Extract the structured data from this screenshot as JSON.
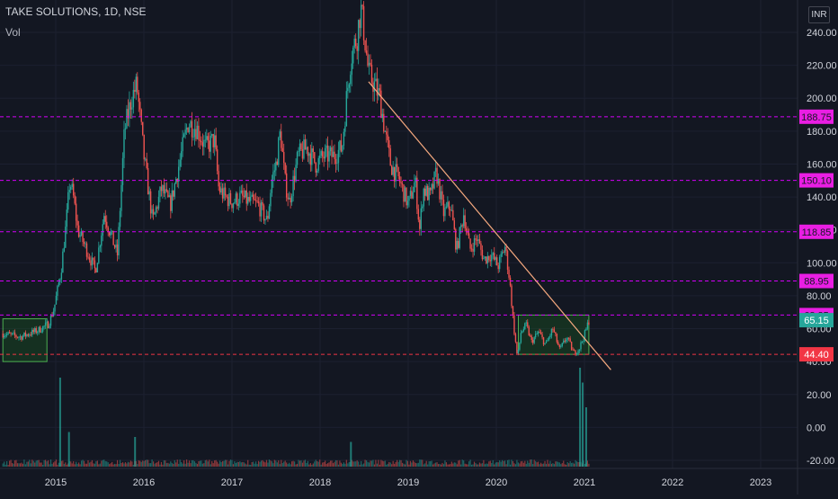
{
  "header": {
    "title": "TAKE SOLUTIONS, 1D, NSE",
    "sub": "Vol",
    "unit": "INR"
  },
  "colors": {
    "bg": "#131722",
    "up": "#26a69a",
    "down": "#ef5350",
    "level_line": "#d500f9",
    "level_label_bg": "#e91ee3",
    "support_line": "#f23645",
    "trend_line": "#f5a97f",
    "box_stroke": "#4caf50",
    "box_fill": "#1b5e20",
    "axis_text": "#d1d4dc"
  },
  "chart_data": {
    "type": "candlestick",
    "x_ticks": [
      "2015",
      "2016",
      "2017",
      "2018",
      "2019",
      "2020",
      "2021",
      "2022",
      "2023"
    ],
    "y_ticks": [
      "-20.00",
      "0.00",
      "20.00",
      "40.00",
      "60.00",
      "80.00",
      "100.00",
      "120.00",
      "140.00",
      "160.00",
      "180.00",
      "200.00",
      "220.00",
      "240.00"
    ],
    "ylim": [
      -20,
      260
    ],
    "xlim": [
      2014.4,
      2023.5
    ],
    "horizontal_levels": [
      {
        "value": 188.75,
        "label": "188.75",
        "style": "magenta"
      },
      {
        "value": 150.1,
        "label": "150.10",
        "style": "magenta"
      },
      {
        "value": 118.85,
        "label": "118.85",
        "style": "magenta"
      },
      {
        "value": 88.95,
        "label": "88.95",
        "style": "magenta"
      },
      {
        "value": 68.25,
        "label": "68.25",
        "style": "magenta"
      },
      {
        "value": 44.4,
        "label": "44.40",
        "style": "red"
      }
    ],
    "last_price": {
      "value": 65.15,
      "label": "65.15"
    },
    "trendline": {
      "x": [
        2018.55,
        2021.3
      ],
      "y": [
        210,
        35
      ]
    },
    "boxes": [
      {
        "x": [
          2014.4,
          2014.9
        ],
        "y": [
          40,
          66
        ]
      },
      {
        "x": [
          2020.25,
          2021.05
        ],
        "y": [
          44.4,
          68.25
        ]
      }
    ],
    "price_path": [
      {
        "x": 2014.4,
        "y": 57
      },
      {
        "x": 2014.6,
        "y": 55
      },
      {
        "x": 2014.8,
        "y": 59
      },
      {
        "x": 2014.92,
        "y": 63
      },
      {
        "x": 2014.98,
        "y": 72
      },
      {
        "x": 2015.06,
        "y": 95
      },
      {
        "x": 2015.12,
        "y": 125
      },
      {
        "x": 2015.16,
        "y": 150
      },
      {
        "x": 2015.2,
        "y": 140
      },
      {
        "x": 2015.25,
        "y": 120
      },
      {
        "x": 2015.35,
        "y": 108
      },
      {
        "x": 2015.45,
        "y": 95
      },
      {
        "x": 2015.55,
        "y": 130
      },
      {
        "x": 2015.62,
        "y": 118
      },
      {
        "x": 2015.7,
        "y": 105
      },
      {
        "x": 2015.78,
        "y": 180
      },
      {
        "x": 2015.86,
        "y": 200
      },
      {
        "x": 2015.92,
        "y": 208
      },
      {
        "x": 2016.0,
        "y": 165
      },
      {
        "x": 2016.1,
        "y": 125
      },
      {
        "x": 2016.2,
        "y": 145
      },
      {
        "x": 2016.3,
        "y": 135
      },
      {
        "x": 2016.4,
        "y": 160
      },
      {
        "x": 2016.5,
        "y": 185
      },
      {
        "x": 2016.6,
        "y": 182
      },
      {
        "x": 2016.7,
        "y": 170
      },
      {
        "x": 2016.8,
        "y": 175
      },
      {
        "x": 2016.85,
        "y": 145
      },
      {
        "x": 2016.92,
        "y": 140
      },
      {
        "x": 2017.0,
        "y": 137
      },
      {
        "x": 2017.1,
        "y": 140
      },
      {
        "x": 2017.2,
        "y": 137
      },
      {
        "x": 2017.3,
        "y": 135
      },
      {
        "x": 2017.4,
        "y": 125
      },
      {
        "x": 2017.45,
        "y": 150
      },
      {
        "x": 2017.5,
        "y": 160
      },
      {
        "x": 2017.55,
        "y": 180
      },
      {
        "x": 2017.6,
        "y": 150
      },
      {
        "x": 2017.65,
        "y": 137
      },
      {
        "x": 2017.75,
        "y": 165
      },
      {
        "x": 2017.85,
        "y": 170
      },
      {
        "x": 2017.95,
        "y": 160
      },
      {
        "x": 2018.05,
        "y": 165
      },
      {
        "x": 2018.15,
        "y": 165
      },
      {
        "x": 2018.25,
        "y": 170
      },
      {
        "x": 2018.3,
        "y": 200
      },
      {
        "x": 2018.35,
        "y": 225
      },
      {
        "x": 2018.42,
        "y": 238
      },
      {
        "x": 2018.46,
        "y": 255
      },
      {
        "x": 2018.5,
        "y": 240
      },
      {
        "x": 2018.55,
        "y": 215
      },
      {
        "x": 2018.6,
        "y": 210
      },
      {
        "x": 2018.68,
        "y": 200
      },
      {
        "x": 2018.75,
        "y": 175
      },
      {
        "x": 2018.8,
        "y": 160
      },
      {
        "x": 2018.9,
        "y": 150
      },
      {
        "x": 2019.0,
        "y": 135
      },
      {
        "x": 2019.08,
        "y": 150
      },
      {
        "x": 2019.13,
        "y": 120
      },
      {
        "x": 2019.17,
        "y": 145
      },
      {
        "x": 2019.25,
        "y": 140
      },
      {
        "x": 2019.32,
        "y": 155
      },
      {
        "x": 2019.4,
        "y": 130
      },
      {
        "x": 2019.48,
        "y": 135
      },
      {
        "x": 2019.55,
        "y": 108
      },
      {
        "x": 2019.63,
        "y": 130
      },
      {
        "x": 2019.7,
        "y": 108
      },
      {
        "x": 2019.78,
        "y": 115
      },
      {
        "x": 2019.86,
        "y": 102
      },
      {
        "x": 2019.94,
        "y": 105
      },
      {
        "x": 2020.02,
        "y": 98
      },
      {
        "x": 2020.1,
        "y": 110
      },
      {
        "x": 2020.15,
        "y": 90
      },
      {
        "x": 2020.2,
        "y": 60
      },
      {
        "x": 2020.24,
        "y": 42
      },
      {
        "x": 2020.28,
        "y": 58
      },
      {
        "x": 2020.34,
        "y": 62
      },
      {
        "x": 2020.4,
        "y": 52
      },
      {
        "x": 2020.48,
        "y": 58
      },
      {
        "x": 2020.56,
        "y": 50
      },
      {
        "x": 2020.64,
        "y": 60
      },
      {
        "x": 2020.72,
        "y": 47
      },
      {
        "x": 2020.8,
        "y": 55
      },
      {
        "x": 2020.88,
        "y": 45
      },
      {
        "x": 2020.94,
        "y": 48
      },
      {
        "x": 2021.0,
        "y": 56
      },
      {
        "x": 2021.05,
        "y": 65
      }
    ],
    "volume_spikes": [
      {
        "x": 2015.05,
        "v": 0.9
      },
      {
        "x": 2015.15,
        "v": 0.35
      },
      {
        "x": 2015.9,
        "v": 0.3
      },
      {
        "x": 2018.35,
        "v": 0.25
      },
      {
        "x": 2020.95,
        "v": 1.0
      },
      {
        "x": 2020.98,
        "v": 0.85
      },
      {
        "x": 2021.02,
        "v": 0.6
      }
    ]
  }
}
